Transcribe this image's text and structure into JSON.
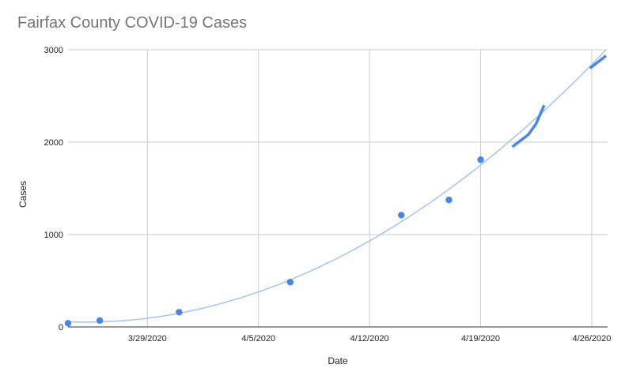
{
  "chart_data": {
    "type": "scatter",
    "title": "Fairfax County COVID-19 Cases",
    "xlabel": "Date",
    "ylabel": "Cases",
    "x_axis_type": "date",
    "xlim": [
      "2020-03-24",
      "2020-04-27"
    ],
    "ylim": [
      0,
      3000
    ],
    "x_ticks": [
      "2020-03-29",
      "2020-04-05",
      "2020-04-12",
      "2020-04-19",
      "2020-04-26"
    ],
    "x_tick_labels": [
      "3/29/2020",
      "4/5/2020",
      "4/12/2020",
      "4/19/2020",
      "4/26/2020"
    ],
    "y_ticks": [
      0,
      1000,
      2000,
      3000
    ],
    "y_tick_labels": [
      "0",
      "1000",
      "2000",
      "3000"
    ],
    "grid": true,
    "legend": "none",
    "colors": {
      "points": "#4a86e8",
      "trendline": "#a6c8f0",
      "gridline": "#cccccc",
      "axis": "#333333",
      "title": "#757575"
    },
    "series": [
      {
        "type": "scatter",
        "points": [
          {
            "x": "2020-03-24",
            "y": 40
          },
          {
            "x": "2020-03-26",
            "y": 70
          },
          {
            "x": "2020-03-31",
            "y": 160
          },
          {
            "x": "2020-04-07",
            "y": 485
          },
          {
            "x": "2020-04-14",
            "y": 1210
          },
          {
            "x": "2020-04-17",
            "y": 1375
          },
          {
            "x": "2020-04-19",
            "y": 1810
          }
        ]
      },
      {
        "type": "line",
        "points": [
          {
            "x": "2020-04-21",
            "y": 1950
          },
          {
            "x": "2020-04-22",
            "y": 2080
          },
          {
            "x": "2020-04-22.5",
            "y": 2200
          },
          {
            "x": "2020-04-23",
            "y": 2400
          }
        ]
      },
      {
        "type": "line",
        "points": [
          {
            "x": "2020-04-25.9",
            "y": 2800
          },
          {
            "x": "2020-04-26",
            "y": 2815
          },
          {
            "x": "2020-04-26.9",
            "y": 2935
          }
        ]
      }
    ],
    "trendline": {
      "type": "polynomial",
      "degree": 2
    }
  }
}
